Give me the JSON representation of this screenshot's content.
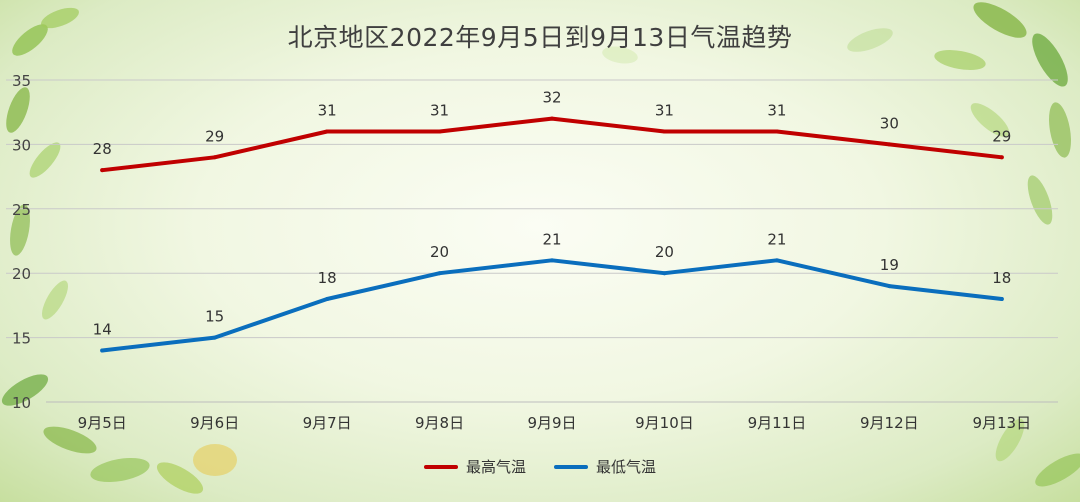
{
  "chart_data": {
    "type": "line",
    "title": "北京地区2022年9月5日到9月13日气温趋势",
    "categories": [
      "9月5日",
      "9月6日",
      "9月7日",
      "9月8日",
      "9月9日",
      "9月10日",
      "9月11日",
      "9月12日",
      "9月13日"
    ],
    "series": [
      {
        "name": "最高气温",
        "color": "#c00000",
        "values": [
          28,
          29,
          31,
          31,
          32,
          31,
          31,
          30,
          29
        ]
      },
      {
        "name": "最低气温",
        "color": "#0a6ebd",
        "values": [
          14,
          15,
          18,
          20,
          21,
          20,
          21,
          19,
          18
        ]
      }
    ],
    "ylim": [
      10,
      35
    ],
    "yticks": [
      10,
      15,
      20,
      25,
      30,
      35
    ],
    "grid": true,
    "legend": "bottom-center",
    "xlabel": "",
    "ylabel": ""
  }
}
